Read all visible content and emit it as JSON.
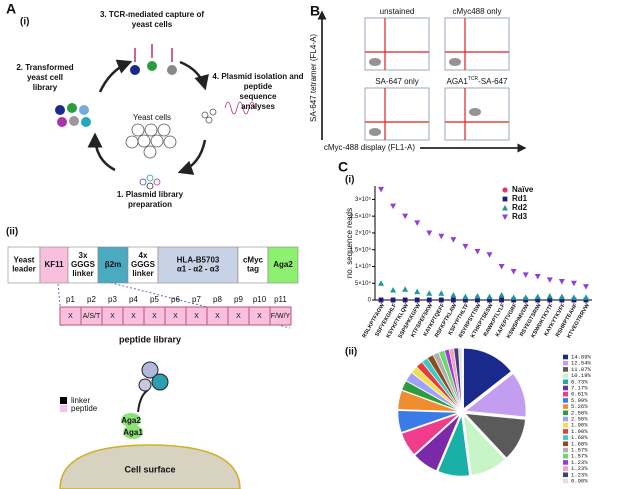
{
  "labels": {
    "a": "A",
    "a_i": "(i)",
    "a_ii": "(ii)",
    "b": "B",
    "c": "C",
    "c_i": "(i)",
    "c_ii": "(ii)"
  },
  "workflow": {
    "center": "Yeast cells",
    "steps": [
      [
        "1. Plasmid library",
        "preparation"
      ],
      [
        "2. Transformed",
        "yeast cell",
        "library"
      ],
      [
        "3. TCR-mediated capture of",
        "yeast cells"
      ],
      [
        "4. Plasmid isolation and",
        "peptide",
        "sequence",
        "analyses"
      ]
    ]
  },
  "construct": {
    "segments": [
      [
        "Yeast",
        "leader"
      ],
      [
        "KF11"
      ],
      [
        "3x",
        "GGGS",
        "linker"
      ],
      [
        "β2m"
      ],
      [
        "4x",
        "GGGS",
        "linker"
      ],
      [
        "HLA-B5703",
        "α1 - α2 - α3"
      ],
      [
        "cMyc",
        "tag"
      ],
      [
        "Aga2"
      ]
    ]
  },
  "peptide": {
    "positions": [
      "p1",
      "p2",
      "p3",
      "p4",
      "p5",
      "p6",
      "p7",
      "p8",
      "p9",
      "p10",
      "p11"
    ],
    "residues": [
      "X",
      "A/S/T",
      "X",
      "X",
      "X",
      "X",
      "X",
      "X",
      "X",
      "X",
      "F/W/Y"
    ],
    "caption": "peptide library"
  },
  "cell": {
    "legend": [
      "linker",
      "peptide"
    ],
    "aga2": "Aga2",
    "aga1": "Aga1",
    "surface": "Cell surface"
  },
  "flow": {
    "panels": [
      [
        "unstained"
      ],
      [
        "cMyc488 only"
      ],
      [
        "SA-647 only"
      ],
      [
        "AGA1",
        "TCR",
        "-SA-647"
      ]
    ],
    "ylabel": "SA-647 tetramer (FL4-A)",
    "xlabel": "cMyc-488 display (FL1-A)"
  },
  "chart_data": [
    {
      "type": "scatter",
      "ylabel": "no. sequence reads",
      "categories": [
        "RSLKPTFAGW",
        "SSFYEKGHLF",
        "KSYKFTKLQW",
        "SSPSPKKGFW",
        "KTFSPEFSKW",
        "KAYKPTQEFF",
        "RSFKPTKLAW",
        "KSFYPTHLTF",
        "RSYRPSYTSW",
        "KTHKPTSESW",
        "RAWKPTLYLF",
        "KAFEPTVGRF",
        "KSWSPIMVDW",
        "RSYEGTSRIW",
        "KSWDKTKVTF",
        "KAYKYTKVFF",
        "RSHRPTEAHF",
        "KTVEGTRRVW"
      ],
      "series": [
        {
          "name": "Naïve",
          "color": "#e8307a",
          "marker": "circle",
          "values": [
            0,
            0,
            0,
            0,
            0,
            0,
            0,
            0,
            0,
            0,
            0,
            0,
            0,
            0,
            0,
            0,
            0,
            0
          ]
        },
        {
          "name": "Rd1",
          "color": "#1c1c7a",
          "marker": "square",
          "values": [
            0,
            0,
            0,
            0,
            0,
            0,
            0,
            0,
            0,
            0,
            0,
            0,
            0,
            0,
            0,
            0,
            0,
            0
          ]
        },
        {
          "name": "Rd2",
          "color": "#1a9a9a",
          "marker": "triangle",
          "values": [
            50000,
            30000,
            32000,
            25000,
            20000,
            20000,
            15000,
            10000,
            12000,
            10000,
            15000,
            8000,
            8000,
            10000,
            12000,
            10000,
            8000,
            8000
          ]
        },
        {
          "name": "Rd3",
          "color": "#9040d8",
          "marker": "triangle-down",
          "values": [
            330000,
            280000,
            250000,
            230000,
            200000,
            190000,
            180000,
            160000,
            145000,
            135000,
            100000,
            85000,
            75000,
            70000,
            60000,
            55000,
            50000,
            40000
          ]
        }
      ],
      "ylim": [
        0,
        340000
      ],
      "yticks": [
        0,
        {
          "value": 50000,
          "label": "5×10⁴"
        },
        {
          "value": 100000,
          "label": "1×10⁵"
        },
        {
          "value": 150000,
          "label": "1.5×10⁵"
        },
        {
          "value": 200000,
          "label": "2×10⁵"
        },
        {
          "value": 250000,
          "label": "2.5×10⁵"
        },
        {
          "value": 300000,
          "label": "3×10⁵"
        }
      ],
      "legend": "upper right"
    },
    {
      "type": "pie",
      "values": [
        14.89,
        12.54,
        11.87,
        10.19,
        8.73,
        7.17,
        6.61,
        5.99,
        5.26,
        2.58,
        2.58,
        1.9,
        1.9,
        1.68,
        1.68,
        1.57,
        1.57,
        1.23,
        1.23,
        1.23,
        0.9
      ],
      "value_labels": [
        "14.89%",
        "12.54%",
        "11.87%",
        "10.19%",
        "8.73%",
        "7.17%",
        "6.61%",
        "5.99%",
        "5.26%",
        "2.58%",
        "2.58%",
        "1.90%",
        "1.90%",
        "1.68%",
        "1.68%",
        "1.57%",
        "1.57%",
        "1.23%",
        "1.23%",
        "1.23%",
        "0.90%"
      ],
      "colors": [
        "#1a2a8c",
        "#c29df0",
        "#5a5a5a",
        "#c8f5c8",
        "#1ab0a8",
        "#7a2aa8",
        "#f03c8c",
        "#3b7be8",
        "#f08c30",
        "#2c9c3c",
        "#a0a0ff",
        "#f0e050",
        "#e83c3c",
        "#3cc8c8",
        "#8c4c1c",
        "#b0b0b0",
        "#6ad86a",
        "#9c3cd8",
        "#f4a0c0",
        "#40407a",
        "#e0e0e0"
      ]
    }
  ]
}
